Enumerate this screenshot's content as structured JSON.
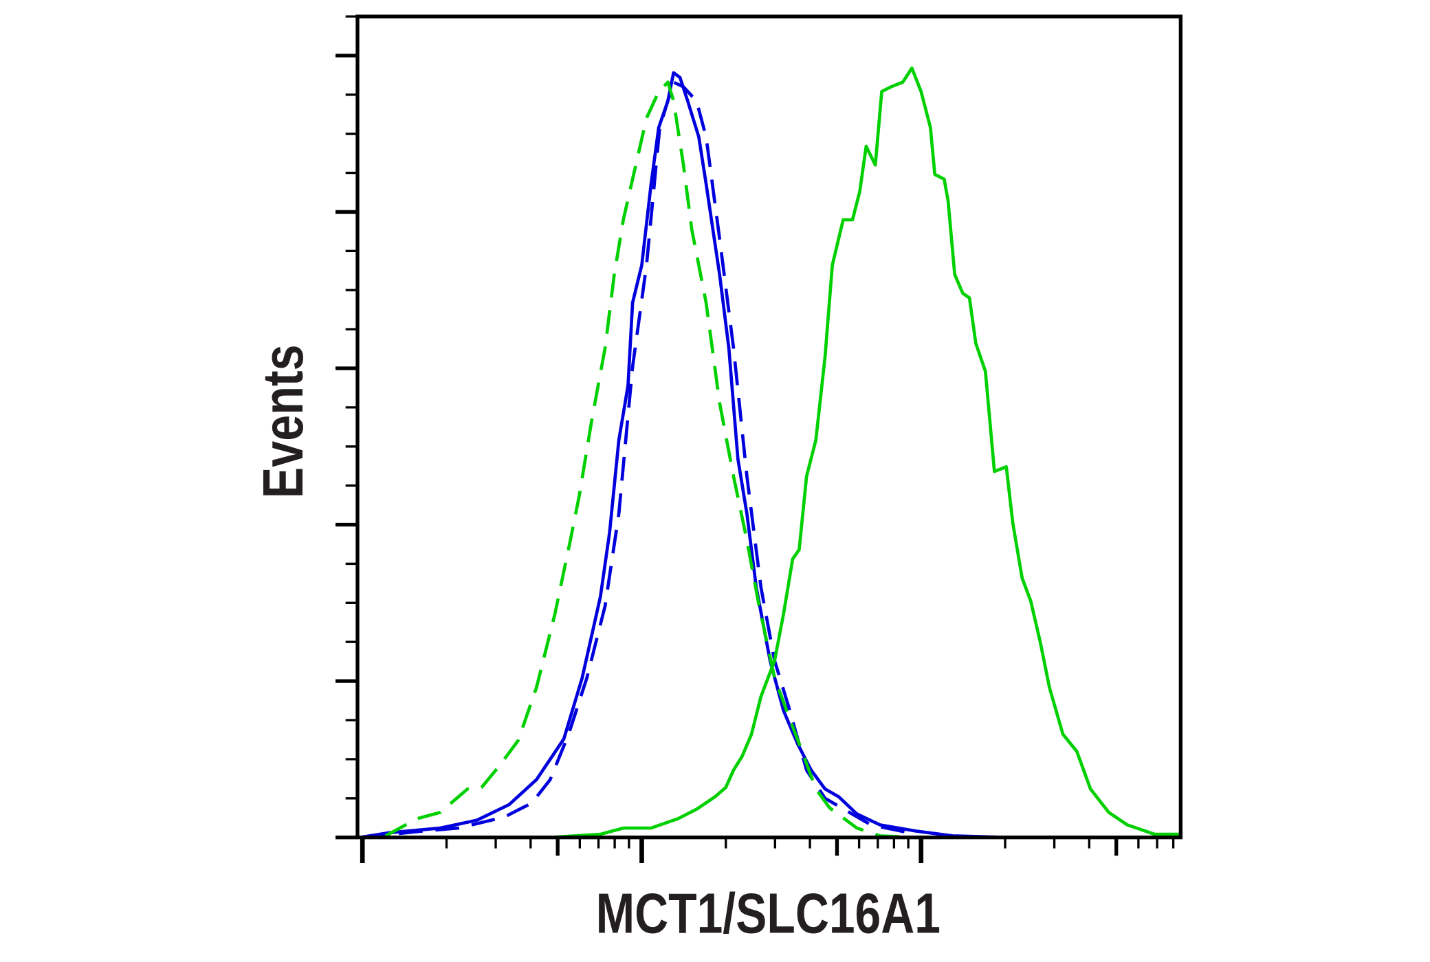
{
  "chart_data": {
    "type": "line",
    "title": "",
    "xlabel": "MCT1/SLC16A1",
    "ylabel": "Events",
    "xscale": "log",
    "xlim": [
      0.96,
      850
    ],
    "ylim": [
      0,
      5.25
    ],
    "grid": false,
    "legend": "none",
    "x_ticks": {
      "major": [
        1,
        10,
        100
      ],
      "medium": [
        5,
        50,
        500
      ],
      "minor": [
        2,
        3,
        4,
        6,
        7,
        8,
        9,
        20,
        30,
        40,
        60,
        70,
        80,
        90,
        200,
        300,
        400,
        600,
        700,
        800
      ]
    },
    "y_ticks": {
      "major": [
        0,
        1,
        2,
        3,
        4,
        5
      ],
      "minor_step": 0.25
    },
    "series": [
      {
        "color": "#0000dd",
        "style": "solid",
        "x": [
          0.98,
          1.25,
          1.9,
          2.57,
          3.35,
          4.2,
          5.26,
          6.12,
          7.11,
          7.67,
          8.28,
          8.93,
          9.27,
          10,
          10.8,
          11.5,
          12.4,
          13.0,
          13.7,
          14.6,
          16.0,
          17.0,
          19.0,
          20.5,
          22.1,
          23.8,
          25.7,
          28.8,
          32.2,
          36.1,
          40.4,
          45.3,
          50.7,
          58.9,
          71.2,
          96.3,
          130,
          205,
          847
        ],
        "y": [
          0,
          0.03,
          0.06,
          0.11,
          0.21,
          0.37,
          0.63,
          1.02,
          1.54,
          1.95,
          2.54,
          2.89,
          3.42,
          3.66,
          4.18,
          4.54,
          4.71,
          4.89,
          4.86,
          4.71,
          4.48,
          4.18,
          3.6,
          3.13,
          2.42,
          2.07,
          1.6,
          1.13,
          0.81,
          0.6,
          0.43,
          0.31,
          0.26,
          0.15,
          0.08,
          0.04,
          0.01,
          0,
          0
        ]
      },
      {
        "color": "#0000dd",
        "style": "dashed",
        "x": [
          1.0,
          1.63,
          2.21,
          3.22,
          4.04,
          4.7,
          5.47,
          6.36,
          7.39,
          8.28,
          9.27,
          10.4,
          11.6,
          13.0,
          14.1,
          15.7,
          17.0,
          19.0,
          21.3,
          23.8,
          26.7,
          29.9,
          33.5,
          38.9,
          45.3,
          66.1,
          96.3
        ],
        "y": [
          0,
          0.04,
          0.06,
          0.13,
          0.22,
          0.37,
          0.66,
          1.02,
          1.48,
          2.07,
          3.01,
          3.66,
          4.54,
          4.83,
          4.8,
          4.71,
          4.48,
          3.83,
          3.13,
          2.31,
          1.6,
          1.13,
          0.84,
          0.43,
          0.25,
          0.08,
          0.02
        ]
      },
      {
        "color": "#00d000",
        "style": "dashed",
        "x": [
          1.21,
          1.57,
          1.9,
          2.38,
          2.67,
          3.1,
          3.61,
          4.2,
          4.89,
          5.55,
          5.98,
          6.61,
          7.39,
          7.97,
          8.59,
          9.27,
          10.4,
          11.5,
          12.4,
          13.0,
          14.1,
          15.1,
          17.0,
          19.0,
          21.3,
          23.8,
          26.3,
          29.9,
          33.5,
          37.5,
          42.0,
          47.0,
          58.9,
          71.2,
          96.3
        ],
        "y": [
          0.01,
          0.12,
          0.16,
          0.31,
          0.32,
          0.46,
          0.62,
          0.96,
          1.43,
          1.9,
          2.19,
          2.66,
          3.13,
          3.6,
          3.95,
          4.21,
          4.6,
          4.77,
          4.83,
          4.71,
          4.3,
          3.89,
          3.42,
          2.78,
          2.31,
          1.9,
          1.48,
          1.02,
          0.78,
          0.55,
          0.31,
          0.19,
          0.06,
          0.01,
          0
        ]
      },
      {
        "color": "#00d000",
        "style": "solid",
        "x": [
          1.0,
          4.7,
          7.11,
          8.59,
          10.8,
          13.5,
          15.7,
          18.3,
          20.0,
          21.3,
          22.9,
          24.7,
          26.7,
          29.9,
          32.2,
          34.7,
          36.6,
          38.9,
          42.0,
          45.3,
          48.1,
          52.6,
          56.8,
          60.3,
          63.6,
          68.6,
          72.3,
          78.0,
          86.0,
          92.7,
          100,
          108,
          112,
          121,
          125,
          132,
          141,
          149,
          157,
          170,
          183,
          202,
          213,
          230,
          247,
          267,
          288,
          322,
          361,
          404,
          470,
          547,
          686,
          847
        ],
        "y": [
          0,
          0,
          0.02,
          0.06,
          0.06,
          0.12,
          0.18,
          0.26,
          0.32,
          0.43,
          0.52,
          0.66,
          0.9,
          1.13,
          1.43,
          1.78,
          1.84,
          2.31,
          2.54,
          3.07,
          3.66,
          3.95,
          3.95,
          4.13,
          4.42,
          4.3,
          4.77,
          4.8,
          4.83,
          4.92,
          4.77,
          4.54,
          4.24,
          4.21,
          4.07,
          3.6,
          3.48,
          3.45,
          3.16,
          2.98,
          2.34,
          2.37,
          2.01,
          1.66,
          1.51,
          1.25,
          0.96,
          0.66,
          0.55,
          0.31,
          0.16,
          0.08,
          0.02,
          0.02
        ]
      }
    ]
  }
}
